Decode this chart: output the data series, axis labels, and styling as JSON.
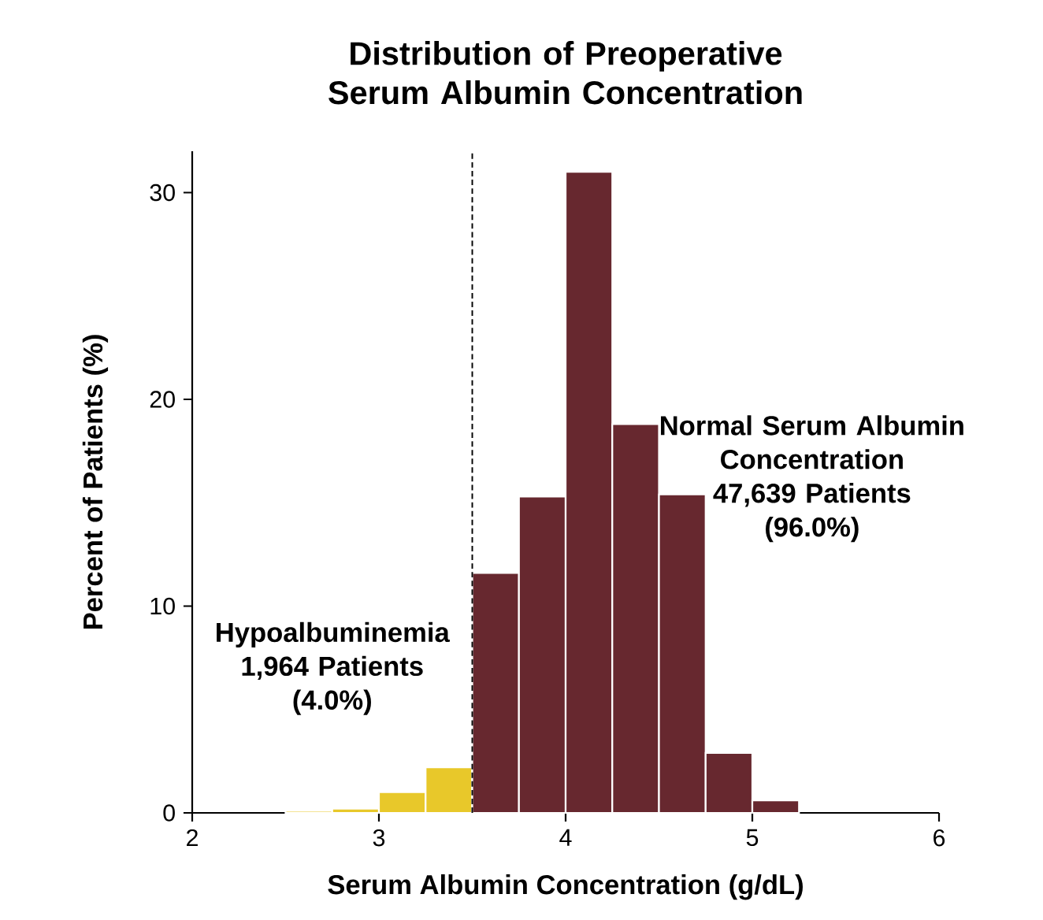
{
  "chart_data": {
    "type": "histogram",
    "title": "Distribution of Preoperative Serum Albumin Concentration",
    "xlabel": "Serum Albumin Concentration (g/dL)",
    "ylabel": "Percent of Patients (%)",
    "bins": [
      2.5,
      2.75,
      3.0,
      3.25,
      3.5,
      3.75,
      4.0,
      4.25,
      4.5,
      4.75,
      5.0,
      5.25
    ],
    "values": [
      0.1,
      0.2,
      1.0,
      2.2,
      11.6,
      15.3,
      31.0,
      18.8,
      15.4,
      2.9,
      0.6
    ],
    "colors": [
      "#e8c82a",
      "#e8c82a",
      "#e8c82a",
      "#e8c82a",
      "#67282f",
      "#67282f",
      "#67282f",
      "#67282f",
      "#67282f",
      "#67282f",
      "#67282f"
    ],
    "xlim": [
      2,
      6
    ],
    "ylim": [
      0,
      32
    ],
    "xticks": [
      2,
      3,
      4,
      5,
      6
    ],
    "yticks": [
      0,
      10,
      20,
      30
    ],
    "grid": false,
    "ref_lines": [
      {
        "axis": "x",
        "value": 3.5,
        "line_style": "dashed"
      }
    ],
    "annotations": [
      "Hypoalbuminemia",
      "1,964 Patients",
      "(4.0%)",
      "Normal Serum Albumin Concentration",
      "47,639 Patients",
      "(96.0%)"
    ]
  }
}
